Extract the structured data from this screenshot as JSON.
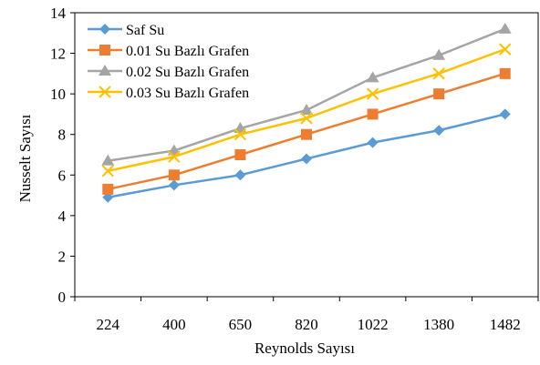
{
  "chart_data": {
    "type": "line",
    "title": "",
    "xlabel": "Reynolds Sayısı",
    "ylabel": "Nusselt Sayısı",
    "categories": [
      "224",
      "400",
      "650",
      "820",
      "1022",
      "1380",
      "1482"
    ],
    "ylim": [
      0,
      14
    ],
    "yticks": [
      "0",
      "2",
      "4",
      "6",
      "8",
      "10",
      "12",
      "14"
    ],
    "grid": false,
    "legend_position": "top-left",
    "series": [
      {
        "name": "Saf Su",
        "color": "#5B9BD5",
        "marker": "diamond",
        "values": [
          4.9,
          5.5,
          6.0,
          6.8,
          7.6,
          8.2,
          9.0
        ]
      },
      {
        "name": "0.01 Su Bazlı Grafen",
        "color": "#ED7D31",
        "marker": "square",
        "values": [
          5.3,
          6.0,
          7.0,
          8.0,
          9.0,
          10.0,
          11.0
        ]
      },
      {
        "name": "0.02 Su Bazlı Grafen",
        "color": "#A5A5A5",
        "marker": "triangle",
        "values": [
          6.7,
          7.2,
          8.3,
          9.2,
          10.8,
          11.9,
          13.2
        ]
      },
      {
        "name": "0.03 Su Bazlı Grafen",
        "color": "#FFC000",
        "marker": "x",
        "values": [
          6.2,
          6.9,
          8.0,
          8.8,
          10.0,
          11.0,
          12.2
        ]
      }
    ]
  }
}
